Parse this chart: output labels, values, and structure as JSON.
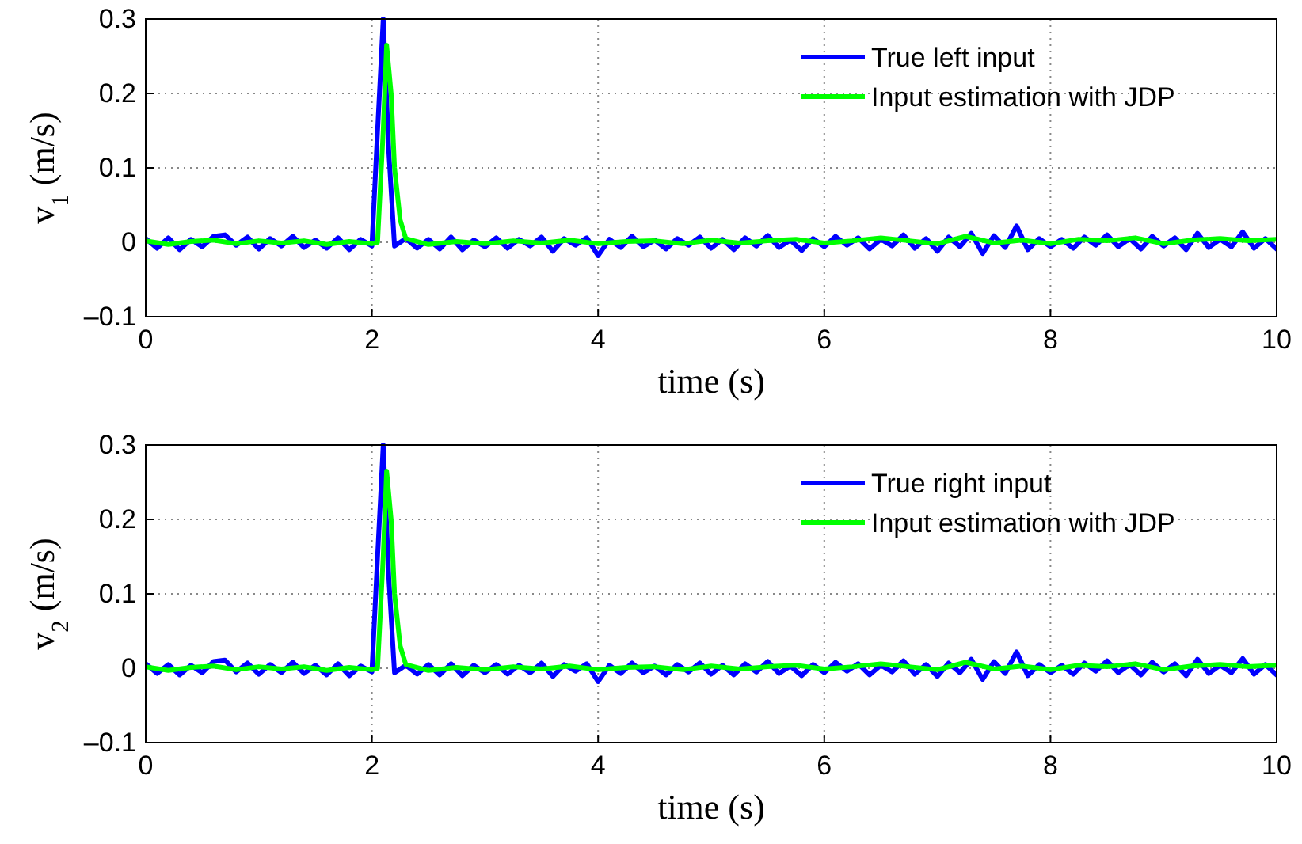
{
  "chart_data": [
    {
      "type": "line",
      "xlabel": "time (s)",
      "ylabel": "v$_{1}$ (m/s)",
      "xlim": [
        0,
        10
      ],
      "ylim": [
        -0.1,
        0.3
      ],
      "xticks": [
        0,
        2,
        4,
        6,
        8,
        10
      ],
      "yticks": [
        {
          "value": -0.1,
          "label": "–0.1"
        },
        0,
        0.1,
        0.2,
        0.3
      ],
      "grid": true,
      "legend": "top right",
      "line_style": "solid",
      "series": [
        {
          "name": "True left input",
          "color": "#0000ff",
          "x": [
            0,
            0.1,
            0.2,
            0.3,
            0.4,
            0.5,
            0.6,
            0.7,
            0.8,
            0.9,
            1,
            1.1,
            1.2,
            1.3,
            1.4,
            1.5,
            1.6,
            1.7,
            1.8,
            1.9,
            2,
            2.05,
            2.1,
            2.15,
            2.2,
            2.3,
            2.4,
            2.5,
            2.6,
            2.7,
            2.8,
            2.9,
            3,
            3.1,
            3.2,
            3.3,
            3.4,
            3.5,
            3.6,
            3.7,
            3.8,
            3.9,
            4,
            4.1,
            4.2,
            4.3,
            4.4,
            4.5,
            4.6,
            4.7,
            4.8,
            4.9,
            5,
            5.1,
            5.2,
            5.3,
            5.4,
            5.5,
            5.6,
            5.7,
            5.8,
            5.9,
            6,
            6.1,
            6.2,
            6.3,
            6.4,
            6.5,
            6.6,
            6.7,
            6.8,
            6.9,
            7,
            7.1,
            7.2,
            7.3,
            7.4,
            7.5,
            7.6,
            7.7,
            7.8,
            7.9,
            8,
            8.1,
            8.2,
            8.3,
            8.4,
            8.5,
            8.6,
            8.7,
            8.8,
            8.9,
            9,
            9.1,
            9.2,
            9.3,
            9.4,
            9.5,
            9.6,
            9.7,
            9.8,
            9.9,
            10
          ],
          "values": [
            0.005,
            -0.008,
            0.006,
            -0.01,
            0.004,
            -0.006,
            0.008,
            0.01,
            -0.004,
            0.007,
            -0.009,
            0.005,
            -0.005,
            0.008,
            -0.007,
            0.003,
            -0.008,
            0.006,
            -0.01,
            0.004,
            -0.005,
            0.15,
            0.3,
            0.12,
            -0.005,
            0.005,
            -0.008,
            0.004,
            -0.009,
            0.007,
            -0.01,
            0.003,
            -0.006,
            0.006,
            -0.008,
            0.004,
            -0.005,
            0.007,
            -0.012,
            0.005,
            -0.004,
            0.006,
            -0.018,
            0.004,
            -0.007,
            0.008,
            -0.006,
            0.003,
            -0.009,
            0.005,
            -0.004,
            0.007,
            -0.008,
            0.004,
            -0.01,
            0.006,
            -0.005,
            0.009,
            -0.007,
            0.003,
            -0.011,
            0.005,
            -0.006,
            0.008,
            -0.004,
            0.006,
            -0.009,
            0.004,
            -0.005,
            0.01,
            -0.008,
            0.005,
            -0.012,
            0.007,
            -0.006,
            0.012,
            -0.015,
            0.009,
            -0.007,
            0.022,
            -0.01,
            0.005,
            -0.006,
            0.004,
            -0.008,
            0.007,
            -0.004,
            0.01,
            -0.006,
            0.005,
            -0.009,
            0.008,
            -0.005,
            0.006,
            -0.01,
            0.012,
            -0.007,
            0.004,
            -0.006,
            0.014,
            -0.008,
            0.005,
            -0.009
          ]
        },
        {
          "name": "Input estimation with JDP",
          "color": "#00ff00",
          "x": [
            0,
            0.2,
            0.4,
            0.6,
            0.8,
            1,
            1.2,
            1.4,
            1.6,
            1.8,
            2,
            2.05,
            2.1,
            2.13,
            2.17,
            2.2,
            2.25,
            2.3,
            2.5,
            2.75,
            3,
            3.25,
            3.5,
            3.75,
            4,
            4.25,
            4.5,
            4.75,
            5,
            5.25,
            5.5,
            5.75,
            6,
            6.25,
            6.5,
            6.75,
            7,
            7.25,
            7.5,
            7.75,
            8,
            8.25,
            8.5,
            8.75,
            9,
            9.25,
            9.5,
            9.75,
            10
          ],
          "values": [
            0.002,
            -0.003,
            0.001,
            0.003,
            -0.002,
            0.002,
            -0.001,
            0.002,
            -0.003,
            0.001,
            -0.002,
            0,
            0.15,
            0.265,
            0.2,
            0.1,
            0.03,
            0.005,
            -0.003,
            0.001,
            -0.002,
            0.002,
            -0.001,
            0.003,
            -0.002,
            0.001,
            0.002,
            -0.002,
            0.003,
            -0.001,
            0.002,
            0.004,
            -0.001,
            0.002,
            0.006,
            0.002,
            -0.002,
            0.008,
            -0.001,
            0.003,
            -0.002,
            0.004,
            0.002,
            0.006,
            -0.002,
            0.003,
            0.005,
            0.002,
            0.004
          ]
        }
      ]
    },
    {
      "type": "line",
      "xlabel": "time (s)",
      "ylabel": "v$_{2}$ (m/s)",
      "xlim": [
        0,
        10
      ],
      "ylim": [
        -0.1,
        0.3
      ],
      "xticks": [
        0,
        2,
        4,
        6,
        8,
        10
      ],
      "yticks": [
        {
          "value": -0.1,
          "label": "–0.1"
        },
        0,
        0.1,
        0.2,
        0.3
      ],
      "grid": true,
      "legend": "top right",
      "line_style": "solid",
      "series": [
        {
          "name": "True right input",
          "color": "#0000ff",
          "x": [
            0,
            0.1,
            0.2,
            0.3,
            0.4,
            0.5,
            0.6,
            0.7,
            0.8,
            0.9,
            1,
            1.1,
            1.2,
            1.3,
            1.4,
            1.5,
            1.6,
            1.7,
            1.8,
            1.9,
            2,
            2.05,
            2.1,
            2.15,
            2.2,
            2.3,
            2.4,
            2.5,
            2.6,
            2.7,
            2.8,
            2.9,
            3,
            3.1,
            3.2,
            3.3,
            3.4,
            3.5,
            3.6,
            3.7,
            3.8,
            3.9,
            4,
            4.1,
            4.2,
            4.3,
            4.4,
            4.5,
            4.6,
            4.7,
            4.8,
            4.9,
            5,
            5.1,
            5.2,
            5.3,
            5.4,
            5.5,
            5.6,
            5.7,
            5.8,
            5.9,
            6,
            6.1,
            6.2,
            6.3,
            6.4,
            6.5,
            6.6,
            6.7,
            6.8,
            6.9,
            7,
            7.1,
            7.2,
            7.3,
            7.4,
            7.5,
            7.6,
            7.7,
            7.8,
            7.9,
            8,
            8.1,
            8.2,
            8.3,
            8.4,
            8.5,
            8.6,
            8.7,
            8.8,
            8.9,
            9,
            9.1,
            9.2,
            9.3,
            9.4,
            9.5,
            9.6,
            9.7,
            9.8,
            9.9,
            10
          ],
          "values": [
            0.006,
            -0.007,
            0.005,
            -0.009,
            0.004,
            -0.006,
            0.009,
            0.011,
            -0.005,
            0.007,
            -0.008,
            0.005,
            -0.006,
            0.008,
            -0.007,
            0.004,
            -0.009,
            0.006,
            -0.01,
            0.003,
            -0.005,
            0.15,
            0.3,
            0.12,
            -0.006,
            0.004,
            -0.008,
            0.005,
            -0.009,
            0.006,
            -0.01,
            0.004,
            -0.006,
            0.005,
            -0.008,
            0.004,
            -0.006,
            0.007,
            -0.011,
            0.005,
            -0.004,
            0.006,
            -0.018,
            0.004,
            -0.007,
            0.007,
            -0.006,
            0.003,
            -0.009,
            0.005,
            -0.005,
            0.007,
            -0.008,
            0.004,
            -0.009,
            0.006,
            -0.005,
            0.009,
            -0.007,
            0.003,
            -0.01,
            0.005,
            -0.006,
            0.008,
            -0.004,
            0.006,
            -0.009,
            0.004,
            -0.005,
            0.01,
            -0.008,
            0.005,
            -0.011,
            0.007,
            -0.006,
            0.012,
            -0.015,
            0.009,
            -0.007,
            0.022,
            -0.01,
            0.005,
            -0.006,
            0.004,
            -0.008,
            0.007,
            -0.004,
            0.01,
            -0.006,
            0.005,
            -0.009,
            0.008,
            -0.005,
            0.006,
            -0.01,
            0.012,
            -0.007,
            0.004,
            -0.006,
            0.013,
            -0.008,
            0.005,
            -0.009
          ]
        },
        {
          "name": "Input estimation with JDP",
          "color": "#00ff00",
          "x": [
            0,
            0.2,
            0.4,
            0.6,
            0.8,
            1,
            1.2,
            1.4,
            1.6,
            1.8,
            2,
            2.05,
            2.1,
            2.13,
            2.17,
            2.2,
            2.25,
            2.3,
            2.5,
            2.75,
            3,
            3.25,
            3.5,
            3.75,
            4,
            4.25,
            4.5,
            4.75,
            5,
            5.25,
            5.5,
            5.75,
            6,
            6.25,
            6.5,
            6.75,
            7,
            7.25,
            7.5,
            7.75,
            8,
            8.25,
            8.5,
            8.75,
            9,
            9.25,
            9.5,
            9.75,
            10
          ],
          "values": [
            0.002,
            -0.003,
            0.001,
            0.003,
            -0.002,
            0.002,
            -0.001,
            0.002,
            -0.003,
            0.001,
            -0.002,
            0,
            0.15,
            0.265,
            0.2,
            0.1,
            0.03,
            0.005,
            -0.003,
            0.001,
            -0.002,
            0.002,
            -0.001,
            0.003,
            -0.002,
            0.001,
            0.002,
            -0.002,
            0.003,
            -0.001,
            0.002,
            0.004,
            -0.001,
            0.002,
            0.006,
            0.002,
            -0.002,
            0.008,
            -0.001,
            0.003,
            -0.002,
            0.004,
            0.002,
            0.006,
            -0.002,
            0.003,
            0.005,
            0.002,
            0.004
          ]
        }
      ]
    }
  ]
}
